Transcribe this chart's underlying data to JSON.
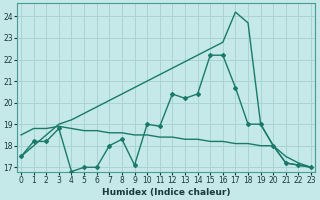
{
  "xlabel": "Humidex (Indice chaleur)",
  "background_color": "#c5e8e8",
  "grid_color": "#aad4d4",
  "line_color": "#1a7a6a",
  "x": [
    0,
    1,
    2,
    3,
    4,
    5,
    6,
    7,
    8,
    9,
    10,
    11,
    12,
    13,
    14,
    15,
    16,
    17,
    18,
    19,
    20,
    21,
    22,
    23
  ],
  "line_zigzag": [
    17.5,
    18.2,
    18.2,
    18.8,
    16.8,
    17.0,
    17.0,
    18.0,
    18.3,
    17.1,
    19.0,
    18.9,
    20.4,
    20.2,
    20.4,
    22.2,
    22.2,
    20.7,
    19.0,
    19.0,
    18.0,
    17.2,
    17.1,
    17.0
  ],
  "line_upper": [
    17.5,
    18.0,
    18.5,
    19.0,
    19.2,
    19.5,
    19.8,
    20.1,
    20.4,
    20.7,
    21.0,
    21.3,
    21.6,
    21.9,
    22.2,
    22.5,
    22.8,
    24.2,
    23.7,
    19.0,
    18.0,
    17.2,
    17.1,
    17.0
  ],
  "line_lower": [
    18.5,
    18.8,
    18.8,
    18.9,
    18.8,
    18.7,
    18.7,
    18.6,
    18.6,
    18.5,
    18.5,
    18.4,
    18.4,
    18.3,
    18.3,
    18.2,
    18.2,
    18.1,
    18.1,
    18.0,
    18.0,
    17.5,
    17.2,
    17.0
  ],
  "ylim": [
    16.8,
    24.6
  ],
  "yticks": [
    17,
    18,
    19,
    20,
    21,
    22,
    23,
    24
  ],
  "xlim": [
    -0.3,
    23.3
  ],
  "xticks": [
    0,
    1,
    2,
    3,
    4,
    5,
    6,
    7,
    8,
    9,
    10,
    11,
    12,
    13,
    14,
    15,
    16,
    17,
    18,
    19,
    20,
    21,
    22,
    23
  ],
  "xlabel_fontsize": 6.5,
  "tick_fontsize": 5.5
}
